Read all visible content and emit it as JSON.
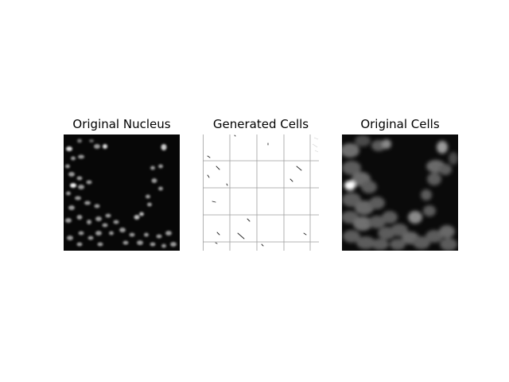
{
  "figure": {
    "panels": [
      {
        "title": "Original Nucleus",
        "image": "grayscale fluorescence image of cell nuclei"
      },
      {
        "title": "Generated Cells",
        "image": "mostly white generated image with faint grid lines and small dark marks"
      },
      {
        "title": "Original Cells",
        "image": "grayscale fluorescence image of cells"
      }
    ]
  }
}
